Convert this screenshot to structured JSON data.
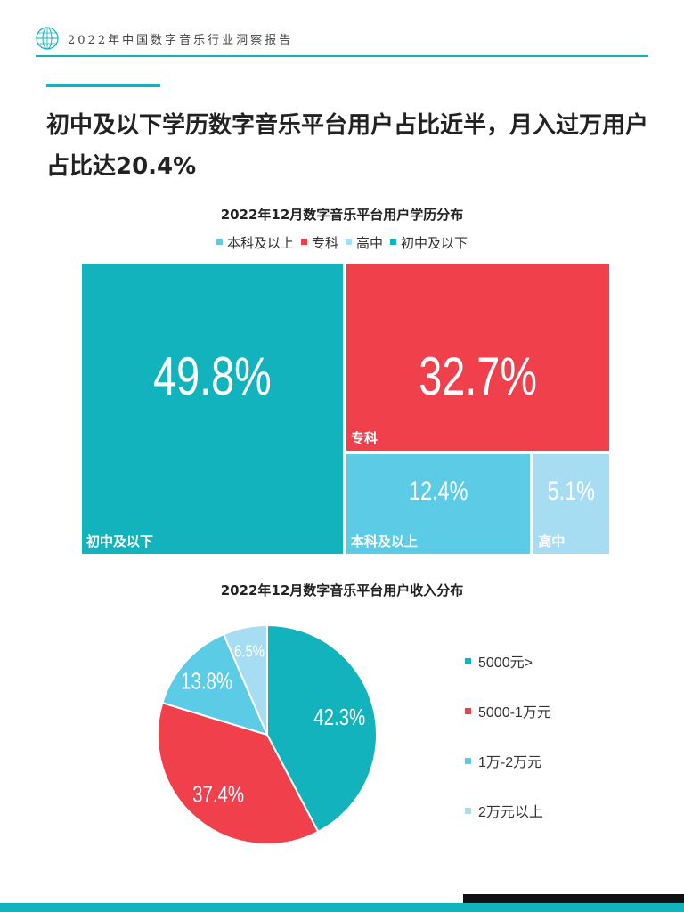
{
  "header": {
    "title": "2022年中国数字音乐行业洞察报告",
    "logo_icon": "globe-icon"
  },
  "headline": "初中及以下学历数字音乐平台用户占比近半，月入过万用户占比达20.4%",
  "colors": {
    "teal": "#12b3bd",
    "red": "#f0404c",
    "light_blue": "#5ccbe6",
    "pale_blue": "#a6ddf3"
  },
  "chart_data": [
    {
      "type": "treemap",
      "title": "2022年12月数字音乐平台用户学历分布",
      "legend": [
        {
          "name": "本科及以上",
          "color": "#5ccbe6"
        },
        {
          "name": "专科",
          "color": "#f0404c"
        },
        {
          "name": "高中",
          "color": "#a6ddf3"
        },
        {
          "name": "初中及以下",
          "color": "#12b3bd"
        }
      ],
      "legend_position": "top",
      "categories": [
        "初中及以下",
        "专科",
        "本科及以上",
        "高中"
      ],
      "values": [
        49.8,
        32.7,
        12.4,
        5.1
      ],
      "value_labels": [
        "49.8%",
        "32.7%",
        "12.4%",
        "5.1%"
      ]
    },
    {
      "type": "pie",
      "title": "2022年12月数字音乐平台用户收入分布",
      "categories": [
        "5000元>",
        "5000-1万元",
        "1万-2万元",
        "2万元以上"
      ],
      "values": [
        42.3,
        37.4,
        13.8,
        6.5
      ],
      "value_labels": [
        "42.3%",
        "37.4%",
        "13.8%",
        "6.5%"
      ],
      "colors": [
        "#12b3bd",
        "#f0404c",
        "#5ccbe6",
        "#a6ddf3"
      ],
      "legend_position": "right"
    }
  ]
}
